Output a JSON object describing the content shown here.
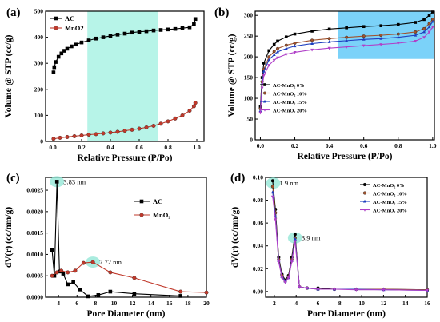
{
  "chart_data": [
    {
      "type": "line",
      "panel": "(a)",
      "xlabel": "Relative Pressure (P/Po)",
      "ylabel": "",
      "xlim": [
        -0.05,
        1.05
      ],
      "ylim": [
        0,
        500
      ],
      "xticks": [
        "0.0",
        "0.2",
        "0.4",
        "0.6",
        "0.8",
        "1.0"
      ],
      "yticks": [
        "0",
        "100",
        "200",
        "300",
        "400",
        "500"
      ],
      "highlight": {
        "x": [
          0.24,
          0.73
        ],
        "y": [
          0,
          500
        ],
        "color": "#9ff0e0"
      },
      "legend_position": "top-left",
      "series": [
        {
          "name": "AC",
          "color": "#000000",
          "marker": "square",
          "x": [
            0.005,
            0.01,
            0.02,
            0.04,
            0.06,
            0.08,
            0.1,
            0.13,
            0.16,
            0.2,
            0.25,
            0.3,
            0.35,
            0.4,
            0.45,
            0.5,
            0.55,
            0.6,
            0.65,
            0.7,
            0.75,
            0.8,
            0.85,
            0.9,
            0.95,
            0.98,
            0.99
          ],
          "y": [
            265,
            285,
            305,
            325,
            338,
            348,
            356,
            365,
            372,
            380,
            388,
            395,
            400,
            405,
            410,
            414,
            418,
            421,
            423,
            426,
            428,
            430,
            432,
            435,
            438,
            450,
            470
          ]
        },
        {
          "name": "MnO2",
          "color": "#c0392b",
          "marker": "circle",
          "x": [
            0.005,
            0.05,
            0.1,
            0.15,
            0.2,
            0.25,
            0.3,
            0.35,
            0.4,
            0.45,
            0.5,
            0.55,
            0.6,
            0.65,
            0.7,
            0.75,
            0.8,
            0.85,
            0.9,
            0.95,
            0.98,
            0.99
          ],
          "y": [
            10,
            14,
            17,
            20,
            23,
            26,
            28,
            31,
            34,
            37,
            41,
            45,
            49,
            54,
            60,
            68,
            77,
            88,
            100,
            118,
            135,
            148
          ]
        }
      ]
    },
    {
      "type": "line",
      "panel": "(b)",
      "xlabel": "Relative Pressure (P/Po)",
      "ylabel": "Volume @ STP (cc/g)",
      "xlim": [
        -0.03,
        1.01
      ],
      "ylim": [
        0,
        310
      ],
      "xticks": [
        "0.0",
        "0.2",
        "0.4",
        "0.6",
        "0.8",
        "1.0"
      ],
      "yticks": [
        "0",
        "50",
        "100",
        "150",
        "200",
        "250",
        "300"
      ],
      "highlight": {
        "x": [
          0.45,
          1.01
        ],
        "y": [
          195,
          310
        ],
        "color": "#4fc3f7"
      },
      "legend_position": "middle-left",
      "series": [
        {
          "name": "AC-MnO₂ 0%",
          "color": "#000000",
          "marker": "square",
          "x": [
            0.0,
            0.01,
            0.02,
            0.05,
            0.08,
            0.1,
            0.15,
            0.2,
            0.3,
            0.4,
            0.5,
            0.6,
            0.7,
            0.8,
            0.9,
            0.95,
            0.98,
            1.0
          ],
          "y": [
            80,
            150,
            185,
            215,
            230,
            238,
            248,
            255,
            262,
            267,
            270,
            273,
            275,
            278,
            283,
            290,
            300,
            308
          ]
        },
        {
          "name": "AC-MnO₂ 10%",
          "color": "#a0522d",
          "marker": "circle",
          "x": [
            0.0,
            0.01,
            0.02,
            0.05,
            0.08,
            0.1,
            0.15,
            0.2,
            0.3,
            0.4,
            0.5,
            0.6,
            0.7,
            0.8,
            0.9,
            0.95,
            0.98,
            1.0
          ],
          "y": [
            75,
            140,
            170,
            200,
            213,
            220,
            228,
            233,
            240,
            244,
            247,
            250,
            252,
            255,
            260,
            268,
            280,
            290
          ]
        },
        {
          "name": "AC-MnO₂ 15%",
          "color": "#1f3fbf",
          "marker": "triangle",
          "x": [
            0.0,
            0.01,
            0.02,
            0.05,
            0.08,
            0.1,
            0.15,
            0.2,
            0.3,
            0.4,
            0.5,
            0.6,
            0.7,
            0.8,
            0.9,
            0.95,
            0.98,
            1.0
          ],
          "y": [
            70,
            135,
            165,
            193,
            205,
            212,
            220,
            226,
            232,
            236,
            239,
            242,
            244,
            247,
            252,
            260,
            272,
            285
          ]
        },
        {
          "name": "AC-MnO₂ 20%",
          "color": "#b040c8",
          "marker": "triangle-down",
          "x": [
            0.0,
            0.01,
            0.02,
            0.05,
            0.08,
            0.1,
            0.15,
            0.2,
            0.3,
            0.4,
            0.5,
            0.6,
            0.7,
            0.8,
            0.9,
            0.95,
            0.98,
            1.0
          ],
          "y": [
            65,
            125,
            155,
            180,
            192,
            198,
            206,
            211,
            217,
            221,
            224,
            227,
            230,
            233,
            238,
            247,
            260,
            272
          ]
        }
      ]
    },
    {
      "type": "line",
      "panel": "(c)",
      "xlabel": "Pore Diameter (nm)",
      "ylabel": "dV(r) (cc/nm/g)",
      "xlim": [
        2.6,
        20
      ],
      "ylim": [
        0,
        0.0028
      ],
      "xticks": [
        "4",
        "6",
        "8",
        "10",
        "12",
        "14",
        "16",
        "18",
        "20"
      ],
      "yticks": [
        "0.0000",
        "0.0005",
        "0.0010",
        "0.0015",
        "0.0020",
        "0.0025"
      ],
      "legend_position": "top-right",
      "annotations": [
        {
          "text": "3.83 nm",
          "x": 3.83,
          "y": 0.0027
        },
        {
          "text": "7.72 nm",
          "x": 7.72,
          "y": 0.00082
        }
      ],
      "series": [
        {
          "name": "AC",
          "color": "#000000",
          "marker": "square",
          "x": [
            3.3,
            3.55,
            3.83,
            4.1,
            4.5,
            5.0,
            5.6,
            6.3,
            7.2,
            8.3,
            9.6,
            12.2,
            17.2
          ],
          "y": [
            0.0011,
            0.0005,
            0.0027,
            0.0006,
            0.00055,
            0.0003,
            0.00035,
            0.00018,
            2e-05,
            5e-05,
            0.00013,
            8e-05,
            3e-05
          ]
        },
        {
          "name": "MnO₂",
          "color": "#c0392b",
          "marker": "circle",
          "x": [
            3.3,
            3.83,
            4.3,
            5.0,
            5.8,
            6.7,
            7.72,
            9.6,
            12.2,
            17.2,
            20.0
          ],
          "y": [
            0.0005,
            0.00058,
            0.00062,
            0.00058,
            0.00062,
            0.0008,
            0.00082,
            0.00058,
            0.00045,
            0.00013,
            0.00011
          ]
        }
      ]
    },
    {
      "type": "line",
      "panel": "(d)",
      "xlabel": "Pore Diameter (nm)",
      "ylabel": "dV(r) (cc/nm/g)",
      "xlim": [
        1.2,
        16
      ],
      "ylim": [
        -0.005,
        0.1
      ],
      "xticks": [
        "2",
        "4",
        "6",
        "8",
        "10",
        "12",
        "14",
        "16"
      ],
      "yticks": [
        "0.00",
        "0.02",
        "0.04",
        "0.06",
        "0.08",
        "0.10"
      ],
      "legend_position": "top-right",
      "annotations": [
        {
          "text": "1.9 nm",
          "x": 1.9,
          "y": 0.095
        },
        {
          "text": "3.9 nm",
          "x": 3.9,
          "y": 0.047
        }
      ],
      "series": [
        {
          "name": "AC-MnO₂ 0%",
          "color": "#000000",
          "marker": "circle",
          "x": [
            1.85,
            2.1,
            2.4,
            2.7,
            3.0,
            3.3,
            3.6,
            3.9,
            4.3,
            5.0,
            6.0,
            7.5,
            9.5,
            12.0,
            16.0
          ],
          "y": [
            0.097,
            0.072,
            0.03,
            0.015,
            0.01,
            0.014,
            0.03,
            0.05,
            0.004,
            0.003,
            0.003,
            0.002,
            0.002,
            0.002,
            0.0015
          ]
        },
        {
          "name": "AC-MnO₂ 10%",
          "color": "#a0522d",
          "marker": "circle",
          "x": [
            1.85,
            2.1,
            2.4,
            2.7,
            3.0,
            3.3,
            3.6,
            3.9,
            4.3,
            5.0,
            6.0,
            7.5,
            9.5,
            12.0,
            16.0
          ],
          "y": [
            0.092,
            0.069,
            0.028,
            0.014,
            0.009,
            0.013,
            0.028,
            0.047,
            0.004,
            0.003,
            0.002,
            0.002,
            0.002,
            0.002,
            0.0015
          ]
        },
        {
          "name": "AC-MnO₂ 15%",
          "color": "#1f3fbf",
          "marker": "triangle",
          "x": [
            1.85,
            2.1,
            2.4,
            2.7,
            3.0,
            3.3,
            3.6,
            3.9,
            4.3,
            5.0,
            6.0,
            7.5,
            9.5,
            12.0,
            16.0
          ],
          "y": [
            0.087,
            0.066,
            0.027,
            0.013,
            0.009,
            0.012,
            0.027,
            0.046,
            0.004,
            0.003,
            0.002,
            0.002,
            0.002,
            0.0015,
            0.001
          ]
        },
        {
          "name": "AC-MnO₂ 20%",
          "color": "#b040c8",
          "marker": "triangle-down",
          "x": [
            1.85,
            2.1,
            2.4,
            2.7,
            3.0,
            3.3,
            3.6,
            3.9,
            4.3,
            5.0,
            6.0,
            7.5,
            9.5,
            12.0,
            16.0
          ],
          "y": [
            0.083,
            0.063,
            0.026,
            0.012,
            0.008,
            0.012,
            0.026,
            0.044,
            0.004,
            0.003,
            0.002,
            0.002,
            0.0015,
            0.0015,
            0.001
          ]
        }
      ]
    }
  ]
}
